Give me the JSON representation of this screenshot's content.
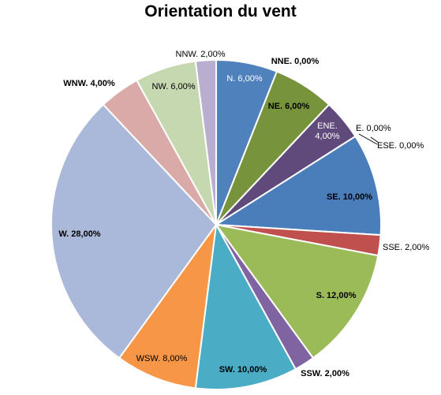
{
  "chart_data": {
    "type": "pie",
    "title": "Orientation du vent",
    "legend": "none",
    "slices": [
      {
        "label": "N. 6,00%",
        "category": "N.",
        "value": 6.0,
        "color": "#4f81bd",
        "bold": false,
        "label_color": "#ffffff"
      },
      {
        "label": "NNE. 0,00%",
        "category": "NNE.",
        "value": 0.0,
        "color": "#c0504d",
        "bold": true,
        "label_color": "#000000"
      },
      {
        "label": "NE. 6,00%",
        "category": "NE.",
        "value": 6.0,
        "color": "#77933c",
        "bold": true,
        "label_color": "#000000"
      },
      {
        "label": "ENE. 4,00%",
        "category": "ENE.",
        "value": 4.0,
        "color": "#604a7b",
        "bold": false,
        "label_color": "#ffffff"
      },
      {
        "label": "E. 0,00%",
        "category": "E.",
        "value": 0.0,
        "color": "#31859c",
        "bold": false,
        "label_color": "#000000"
      },
      {
        "label": "ESE. 0,00%",
        "category": "ESE.",
        "value": 0.0,
        "color": "#e46c0a",
        "bold": false,
        "label_color": "#000000"
      },
      {
        "label": "SE. 10,00%",
        "category": "SE.",
        "value": 10.0,
        "color": "#4a7ebb",
        "bold": true,
        "label_color": "#000000"
      },
      {
        "label": "SSE. 2,00%",
        "category": "SSE.",
        "value": 2.0,
        "color": "#c0504d",
        "bold": false,
        "label_color": "#000000"
      },
      {
        "label": "S. 12,00%",
        "category": "S.",
        "value": 12.0,
        "color": "#9bbb59",
        "bold": true,
        "label_color": "#000000"
      },
      {
        "label": "SSW. 2,00%",
        "category": "SSW.",
        "value": 2.0,
        "color": "#8064a2",
        "bold": true,
        "label_color": "#000000"
      },
      {
        "label": "SW. 10,00%",
        "category": "SW.",
        "value": 10.0,
        "color": "#4bacc6",
        "bold": true,
        "label_color": "#000000"
      },
      {
        "label": "WSW. 8,00%",
        "category": "WSW.",
        "value": 8.0,
        "color": "#f79646",
        "bold": false,
        "label_color": "#000000"
      },
      {
        "label": "W. 28,00%",
        "category": "W.",
        "value": 28.0,
        "color": "#aab9d9",
        "bold": true,
        "label_color": "#000000"
      },
      {
        "label": "WNW. 4,00%",
        "category": "WNW.",
        "value": 4.0,
        "color": "#d9aaa8",
        "bold": true,
        "label_color": "#000000"
      },
      {
        "label": "NW. 6,00%",
        "category": "NW.",
        "value": 6.0,
        "color": "#c6d8b0",
        "bold": false,
        "label_color": "#000000"
      },
      {
        "label": "NNW. 2,00%",
        "category": "NNW.",
        "value": 2.0,
        "color": "#b9aecf",
        "bold": false,
        "label_color": "#000000"
      }
    ]
  }
}
